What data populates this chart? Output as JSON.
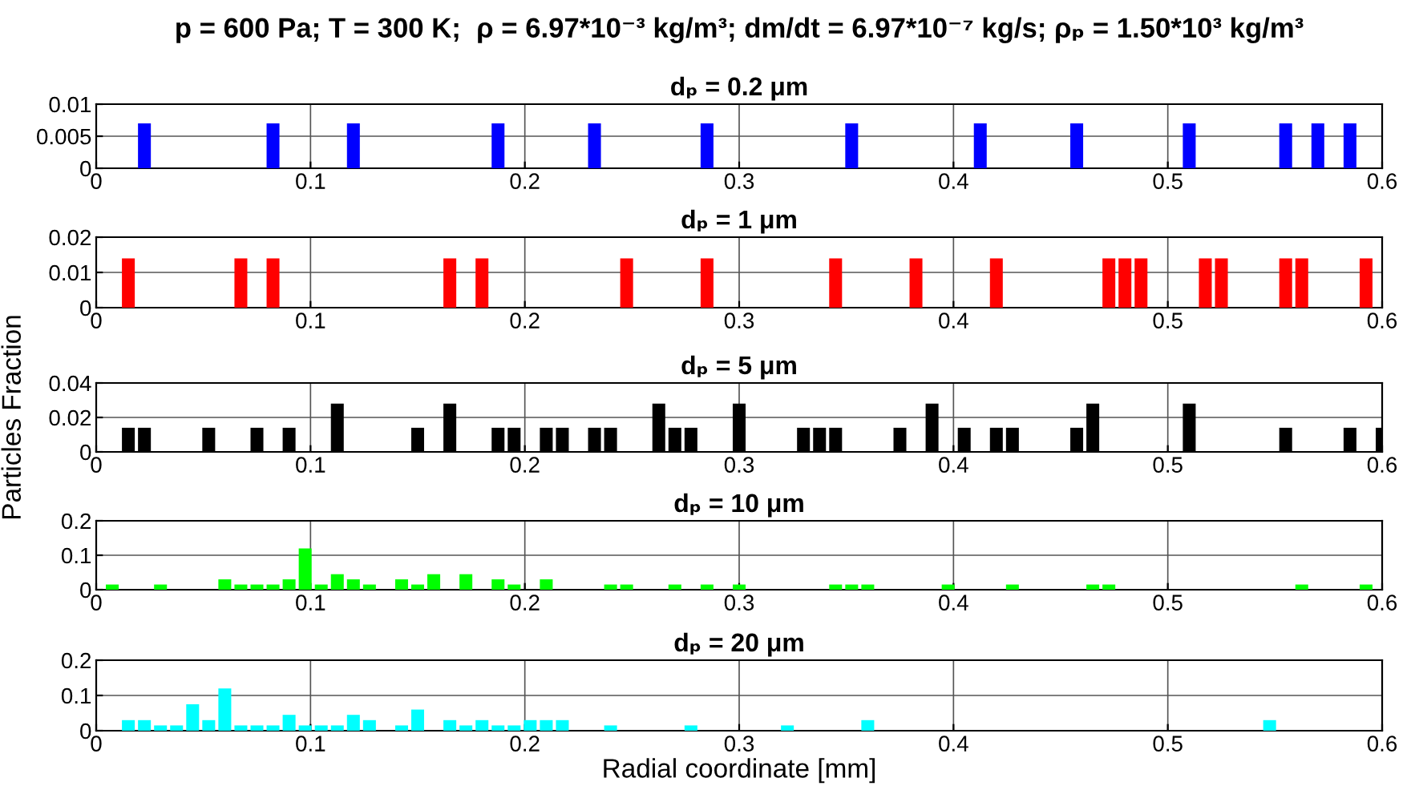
{
  "chart_data": [
    {
      "type": "bar",
      "title": "p = 600 Pa; T = 300 K;  ρ = 6.97*10⁻³ kg/m³; dm/dt = 6.97*10⁻⁷ kg/s; ρₚ = 1.50*10³ kg/m³",
      "subtitle": "dₚ = 0.2 μm",
      "color": "#0000ff",
      "x": [
        0.0225,
        0.0825,
        0.12,
        0.1875,
        0.2325,
        0.285,
        0.3525,
        0.4125,
        0.4575,
        0.51,
        0.555,
        0.57,
        0.585
      ],
      "values": [
        0.007,
        0.007,
        0.007,
        0.007,
        0.007,
        0.007,
        0.007,
        0.007,
        0.007,
        0.007,
        0.007,
        0.007,
        0.007
      ],
      "xlim": [
        0,
        0.6
      ],
      "xticks": [
        0,
        0.1,
        0.2,
        0.3,
        0.4,
        0.5,
        0.6
      ],
      "ylim": [
        0,
        0.01
      ],
      "yticks": [
        0,
        0.005,
        0.01
      ],
      "grid": true
    },
    {
      "type": "bar",
      "title": "dₚ = 1 μm",
      "color": "#ff0000",
      "x": [
        0.015,
        0.0675,
        0.0825,
        0.165,
        0.18,
        0.2475,
        0.285,
        0.345,
        0.3825,
        0.42,
        0.4725,
        0.48,
        0.4875,
        0.5175,
        0.525,
        0.555,
        0.5625,
        0.5925
      ],
      "values": [
        0.014,
        0.014,
        0.014,
        0.014,
        0.014,
        0.014,
        0.014,
        0.014,
        0.014,
        0.014,
        0.014,
        0.014,
        0.014,
        0.014,
        0.014,
        0.014,
        0.014,
        0.014
      ],
      "xlim": [
        0,
        0.6
      ],
      "xticks": [
        0,
        0.1,
        0.2,
        0.3,
        0.4,
        0.5,
        0.6
      ],
      "ylim": [
        0,
        0.02
      ],
      "yticks": [
        0,
        0.01,
        0.02
      ],
      "grid": true
    },
    {
      "type": "bar",
      "title": "dₚ = 5 μm",
      "ylabel": "Particles Fraction",
      "color": "#000000",
      "x": [
        0.015,
        0.0225,
        0.0525,
        0.075,
        0.09,
        0.1125,
        0.15,
        0.165,
        0.1875,
        0.195,
        0.21,
        0.2175,
        0.2325,
        0.24,
        0.2625,
        0.27,
        0.2775,
        0.3,
        0.33,
        0.3375,
        0.345,
        0.375,
        0.39,
        0.405,
        0.42,
        0.4275,
        0.4575,
        0.465,
        0.51,
        0.555,
        0.585,
        0.6
      ],
      "values": [
        0.014,
        0.014,
        0.014,
        0.014,
        0.014,
        0.028,
        0.014,
        0.028,
        0.014,
        0.014,
        0.014,
        0.014,
        0.014,
        0.014,
        0.028,
        0.014,
        0.014,
        0.028,
        0.014,
        0.014,
        0.014,
        0.014,
        0.028,
        0.014,
        0.014,
        0.014,
        0.014,
        0.028,
        0.028,
        0.014,
        0.014,
        0.014
      ],
      "xlim": [
        0,
        0.6
      ],
      "xticks": [
        0,
        0.1,
        0.2,
        0.3,
        0.4,
        0.5,
        0.6
      ],
      "ylim": [
        0,
        0.04
      ],
      "yticks": [
        0,
        0.02,
        0.04
      ],
      "grid": true
    },
    {
      "type": "bar",
      "title": "dₚ = 10 μm",
      "color": "#00ff00",
      "x": [
        0.0075,
        0.03,
        0.06,
        0.0675,
        0.075,
        0.0825,
        0.09,
        0.0975,
        0.105,
        0.1125,
        0.12,
        0.1275,
        0.1425,
        0.15,
        0.1575,
        0.1725,
        0.1875,
        0.195,
        0.21,
        0.24,
        0.2475,
        0.27,
        0.285,
        0.3,
        0.345,
        0.3525,
        0.36,
        0.3975,
        0.4275,
        0.465,
        0.4725,
        0.5625,
        0.5925
      ],
      "values": [
        0.015,
        0.015,
        0.03,
        0.015,
        0.015,
        0.015,
        0.03,
        0.12,
        0.015,
        0.045,
        0.03,
        0.015,
        0.03,
        0.015,
        0.045,
        0.045,
        0.03,
        0.015,
        0.03,
        0.015,
        0.015,
        0.015,
        0.015,
        0.015,
        0.015,
        0.015,
        0.015,
        0.015,
        0.015,
        0.015,
        0.015,
        0.015,
        0.015
      ],
      "xlim": [
        0,
        0.6
      ],
      "xticks": [
        0,
        0.1,
        0.2,
        0.3,
        0.4,
        0.5,
        0.6
      ],
      "ylim": [
        0,
        0.2
      ],
      "yticks": [
        0,
        0.1,
        0.2
      ],
      "grid": true
    },
    {
      "type": "bar",
      "title": "dₚ = 20 μm",
      "xlabel": "Radial coordinate [mm]",
      "color": "#00ffff",
      "x": [
        0.015,
        0.0225,
        0.03,
        0.0375,
        0.045,
        0.0525,
        0.06,
        0.0675,
        0.075,
        0.0825,
        0.09,
        0.0975,
        0.105,
        0.1125,
        0.12,
        0.1275,
        0.1425,
        0.15,
        0.165,
        0.1725,
        0.18,
        0.1875,
        0.195,
        0.2025,
        0.21,
        0.2175,
        0.24,
        0.2775,
        0.3225,
        0.36,
        0.5475
      ],
      "values": [
        0.03,
        0.03,
        0.015,
        0.015,
        0.075,
        0.03,
        0.12,
        0.015,
        0.015,
        0.015,
        0.045,
        0.015,
        0.015,
        0.015,
        0.045,
        0.03,
        0.015,
        0.06,
        0.03,
        0.015,
        0.03,
        0.015,
        0.015,
        0.03,
        0.03,
        0.03,
        0.015,
        0.015,
        0.015,
        0.03,
        0.03
      ],
      "xlim": [
        0,
        0.6
      ],
      "xticks": [
        0,
        0.1,
        0.2,
        0.3,
        0.4,
        0.5,
        0.6
      ],
      "ylim": [
        0,
        0.2
      ],
      "yticks": [
        0,
        0.1,
        0.2
      ],
      "grid": true
    }
  ]
}
